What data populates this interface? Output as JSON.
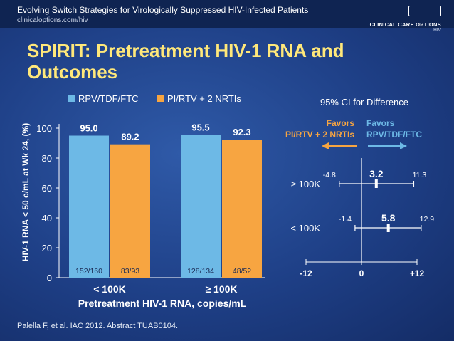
{
  "header": {
    "title": "Evolving Switch Strategies for Virologically Suppressed HIV-Infected Patients",
    "url": "clinicaloptions.com/hiv",
    "logo_name": "CLINICAL CARE OPTIONS",
    "logo_sub": "HIV"
  },
  "slide_title_line1": "SPIRIT: Pretreatment HIV-1 RNA and",
  "slide_title_line2": "Outcomes",
  "citation": "Palella F, et al. IAC 2012. Abstract TUAB0104.",
  "colors": {
    "rpv": "#6db9e6",
    "pi": "#f7a541",
    "title": "#ffe87a",
    "background": "#1f428a"
  },
  "chart_data": [
    {
      "type": "bar",
      "ylabel": "HIV-1 RNA < 50 c/mL at Wk 24, (%)",
      "xlabel": "Pretreatment HIV-1 RNA, copies/mL",
      "ylim": [
        0,
        100
      ],
      "yticks": [
        "0",
        "20",
        "40",
        "60",
        "80",
        "100"
      ],
      "categories": [
        "< 100K",
        "≥ 100K"
      ],
      "series": [
        {
          "name": "RPV/TDF/FTC",
          "values": [
            95.0,
            95.5
          ],
          "value_labels": [
            "95.0",
            "95.5"
          ],
          "fractions": [
            "152/160",
            "128/134"
          ],
          "color": "#6db9e6"
        },
        {
          "name": "PI/RTV + 2 NRTIs",
          "values": [
            89.2,
            92.3
          ],
          "value_labels": [
            "89.2",
            "92.3"
          ],
          "fractions": [
            "83/93",
            "48/52"
          ],
          "color": "#f7a541"
        }
      ],
      "legend": "top"
    },
    {
      "type": "forest",
      "title": "95% CI for Difference",
      "xlim": [
        -12,
        12
      ],
      "xticks": [
        "-12",
        "0",
        "+12"
      ],
      "favors_left": [
        "Favors",
        "PI/RTV + 2 NRTIs"
      ],
      "favors_right": [
        "Favors",
        "RPV/TDF/FTC"
      ],
      "rows": [
        {
          "label": "≥ 100K",
          "estimate": 3.2,
          "lower": -4.8,
          "upper": 11.3,
          "estimate_label": "3.2",
          "lower_label": "-4.8",
          "upper_label": "11.3"
        },
        {
          "label": "< 100K",
          "estimate": 5.8,
          "lower": -1.4,
          "upper": 12.9,
          "estimate_label": "5.8",
          "lower_label": "-1.4",
          "upper_label": "12.9"
        }
      ]
    }
  ]
}
